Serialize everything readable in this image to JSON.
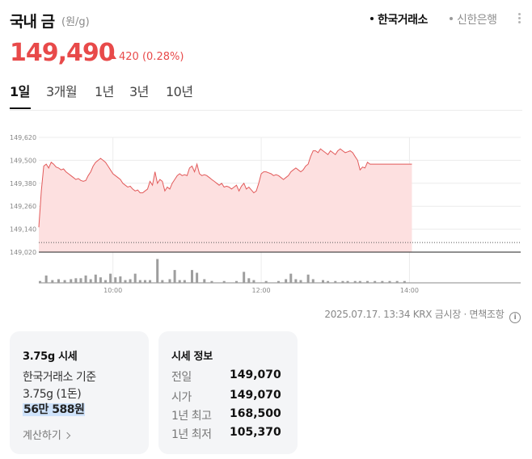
{
  "header": {
    "title": "국내 금",
    "unit": "(원/g)",
    "sources": [
      {
        "label": "한국거래소",
        "active": true
      },
      {
        "label": "신한은행",
        "active": false
      }
    ]
  },
  "quote": {
    "price": "149,490",
    "change": "420",
    "change_pct": "(0.28%)",
    "direction": "up",
    "up_color": "#e84a4a"
  },
  "tabs": [
    "1일",
    "3개월",
    "1년",
    "3년",
    "10년"
  ],
  "active_tab": "1일",
  "chart_data": {
    "type": "area",
    "ylim": [
      149020,
      149620
    ],
    "y_ticks": [
      "149,620",
      "149,500",
      "149,380",
      "149,260",
      "149,140",
      "149,020"
    ],
    "x_ticks": [
      "10:00",
      "12:00",
      "14:00"
    ],
    "x_range_minutes": [
      540,
      930
    ],
    "reference_line": 149070,
    "series": [
      {
        "x": [
          540,
          542,
          544,
          546,
          548,
          550,
          552,
          554,
          556,
          558,
          560,
          562,
          564,
          566,
          568,
          570,
          572,
          574,
          576,
          578,
          580,
          582,
          584,
          586,
          588,
          590,
          592,
          594,
          596,
          598,
          600,
          602,
          604,
          606,
          608,
          610,
          612,
          614,
          616,
          618,
          620,
          622,
          624,
          626,
          628,
          630,
          632,
          634,
          636,
          638,
          640,
          642,
          644,
          646,
          648,
          650,
          652,
          654,
          656,
          658,
          660,
          662,
          664,
          666,
          668,
          670,
          672,
          674,
          676,
          678,
          680,
          682,
          684,
          686,
          688,
          690,
          692,
          694,
          696,
          698,
          700,
          702,
          704,
          706,
          708,
          710,
          712,
          714,
          716,
          718,
          720,
          722,
          724,
          726,
          728,
          730,
          732,
          734,
          736,
          738,
          740,
          742,
          744,
          746,
          748,
          750,
          752,
          754,
          756,
          758,
          760,
          762,
          764,
          766,
          768,
          770,
          772,
          774,
          776,
          778,
          780,
          782,
          784,
          786,
          788,
          790,
          792,
          794,
          796,
          798,
          800,
          802,
          804,
          806,
          808,
          810,
          812,
          814,
          816,
          818,
          820,
          822,
          824,
          826,
          828,
          830,
          832,
          834,
          836,
          838,
          840,
          842
        ],
        "values": [
          149150,
          149340,
          149470,
          149480,
          149460,
          149490,
          149480,
          149465,
          149460,
          149450,
          149455,
          149440,
          149430,
          149420,
          149410,
          149400,
          149405,
          149395,
          149390,
          149395,
          149420,
          149440,
          149470,
          149490,
          149500,
          149510,
          149500,
          149490,
          149470,
          149450,
          149430,
          149420,
          149410,
          149400,
          149380,
          149370,
          149360,
          149365,
          149350,
          149340,
          149345,
          149330,
          149330,
          149340,
          149350,
          149390,
          149370,
          149440,
          149380,
          149400,
          149390,
          149340,
          149360,
          149350,
          149380,
          149400,
          149420,
          149430,
          149420,
          149425,
          149420,
          149460,
          149470,
          149440,
          149480,
          149430,
          149420,
          149425,
          149420,
          149410,
          149400,
          149390,
          149380,
          149370,
          149380,
          149360,
          149365,
          149360,
          149350,
          149360,
          149370,
          149340,
          149365,
          149380,
          149350,
          149360,
          149345,
          149330,
          149340,
          149380,
          149430,
          149440,
          149440,
          149435,
          149430,
          149420,
          149425,
          149420,
          149410,
          149400,
          149410,
          149420,
          149440,
          149450,
          149460,
          149450,
          149440,
          149450,
          149470,
          149480,
          149520,
          149550,
          149550,
          149540,
          149560,
          149550,
          149540,
          149530,
          149550,
          149540,
          149530,
          149550,
          149560,
          149550,
          149540,
          149545,
          149550,
          149540,
          149520,
          149500,
          149450,
          149465,
          149460,
          149490,
          149480,
          149480,
          149480,
          149480,
          149480,
          149480,
          149480,
          149480,
          149480,
          149480,
          149480,
          149480,
          149480,
          149480,
          149480,
          149480,
          149480,
          149480
        ]
      }
    ],
    "volume_bars": [
      {
        "x": 541,
        "v": 2
      },
      {
        "x": 546,
        "v": 8
      },
      {
        "x": 551,
        "v": 3
      },
      {
        "x": 556,
        "v": 4
      },
      {
        "x": 561,
        "v": 3
      },
      {
        "x": 566,
        "v": 4
      },
      {
        "x": 570,
        "v": 5
      },
      {
        "x": 574,
        "v": 5
      },
      {
        "x": 578,
        "v": 8
      },
      {
        "x": 582,
        "v": 4
      },
      {
        "x": 586,
        "v": 9
      },
      {
        "x": 590,
        "v": 6
      },
      {
        "x": 594,
        "v": 3
      },
      {
        "x": 598,
        "v": 10
      },
      {
        "x": 602,
        "v": 6
      },
      {
        "x": 606,
        "v": 7
      },
      {
        "x": 610,
        "v": 3
      },
      {
        "x": 614,
        "v": 4
      },
      {
        "x": 618,
        "v": 10
      },
      {
        "x": 622,
        "v": 3
      },
      {
        "x": 626,
        "v": 3
      },
      {
        "x": 630,
        "v": 3
      },
      {
        "x": 636,
        "v": 26
      },
      {
        "x": 640,
        "v": 3
      },
      {
        "x": 646,
        "v": 4
      },
      {
        "x": 650,
        "v": 14
      },
      {
        "x": 654,
        "v": 3
      },
      {
        "x": 658,
        "v": 3
      },
      {
        "x": 664,
        "v": 14
      },
      {
        "x": 668,
        "v": 11
      },
      {
        "x": 674,
        "v": 4
      },
      {
        "x": 680,
        "v": 2
      },
      {
        "x": 690,
        "v": 2
      },
      {
        "x": 700,
        "v": 2
      },
      {
        "x": 706,
        "v": 12
      },
      {
        "x": 710,
        "v": 5
      },
      {
        "x": 714,
        "v": 3
      },
      {
        "x": 724,
        "v": 2
      },
      {
        "x": 734,
        "v": 2
      },
      {
        "x": 740,
        "v": 4
      },
      {
        "x": 744,
        "v": 10
      },
      {
        "x": 748,
        "v": 4
      },
      {
        "x": 752,
        "v": 3
      },
      {
        "x": 758,
        "v": 9
      },
      {
        "x": 762,
        "v": 4
      },
      {
        "x": 770,
        "v": 3
      },
      {
        "x": 774,
        "v": 2
      },
      {
        "x": 780,
        "v": 2
      },
      {
        "x": 786,
        "v": 2
      },
      {
        "x": 790,
        "v": 2
      },
      {
        "x": 796,
        "v": 2
      },
      {
        "x": 800,
        "v": 2
      },
      {
        "x": 806,
        "v": 2
      },
      {
        "x": 812,
        "v": 2
      },
      {
        "x": 818,
        "v": 2
      },
      {
        "x": 824,
        "v": 2
      },
      {
        "x": 830,
        "v": 2
      },
      {
        "x": 836,
        "v": 2
      }
    ],
    "volume_max": 30,
    "line_color": "#e25a5a",
    "fill_color": "#fde0e0"
  },
  "meta": {
    "timestamp": "2025.07.17. 13:34 KRX 금시장",
    "disclaimer": "면책조항",
    "info_icon": "i"
  },
  "card_market": {
    "title": "3.75g 시세",
    "line1": "한국거래소 기준",
    "line2": "3.75g (1돈)",
    "value": "56만 588원",
    "calc_label": "계산하기"
  },
  "card_info": {
    "title": "시세 정보",
    "rows": [
      {
        "label": "전일",
        "value": "149,070"
      },
      {
        "label": "시가",
        "value": "149,070"
      },
      {
        "label": "1년 최고",
        "value": "168,500"
      },
      {
        "label": "1년 최저",
        "value": "105,370"
      }
    ]
  }
}
